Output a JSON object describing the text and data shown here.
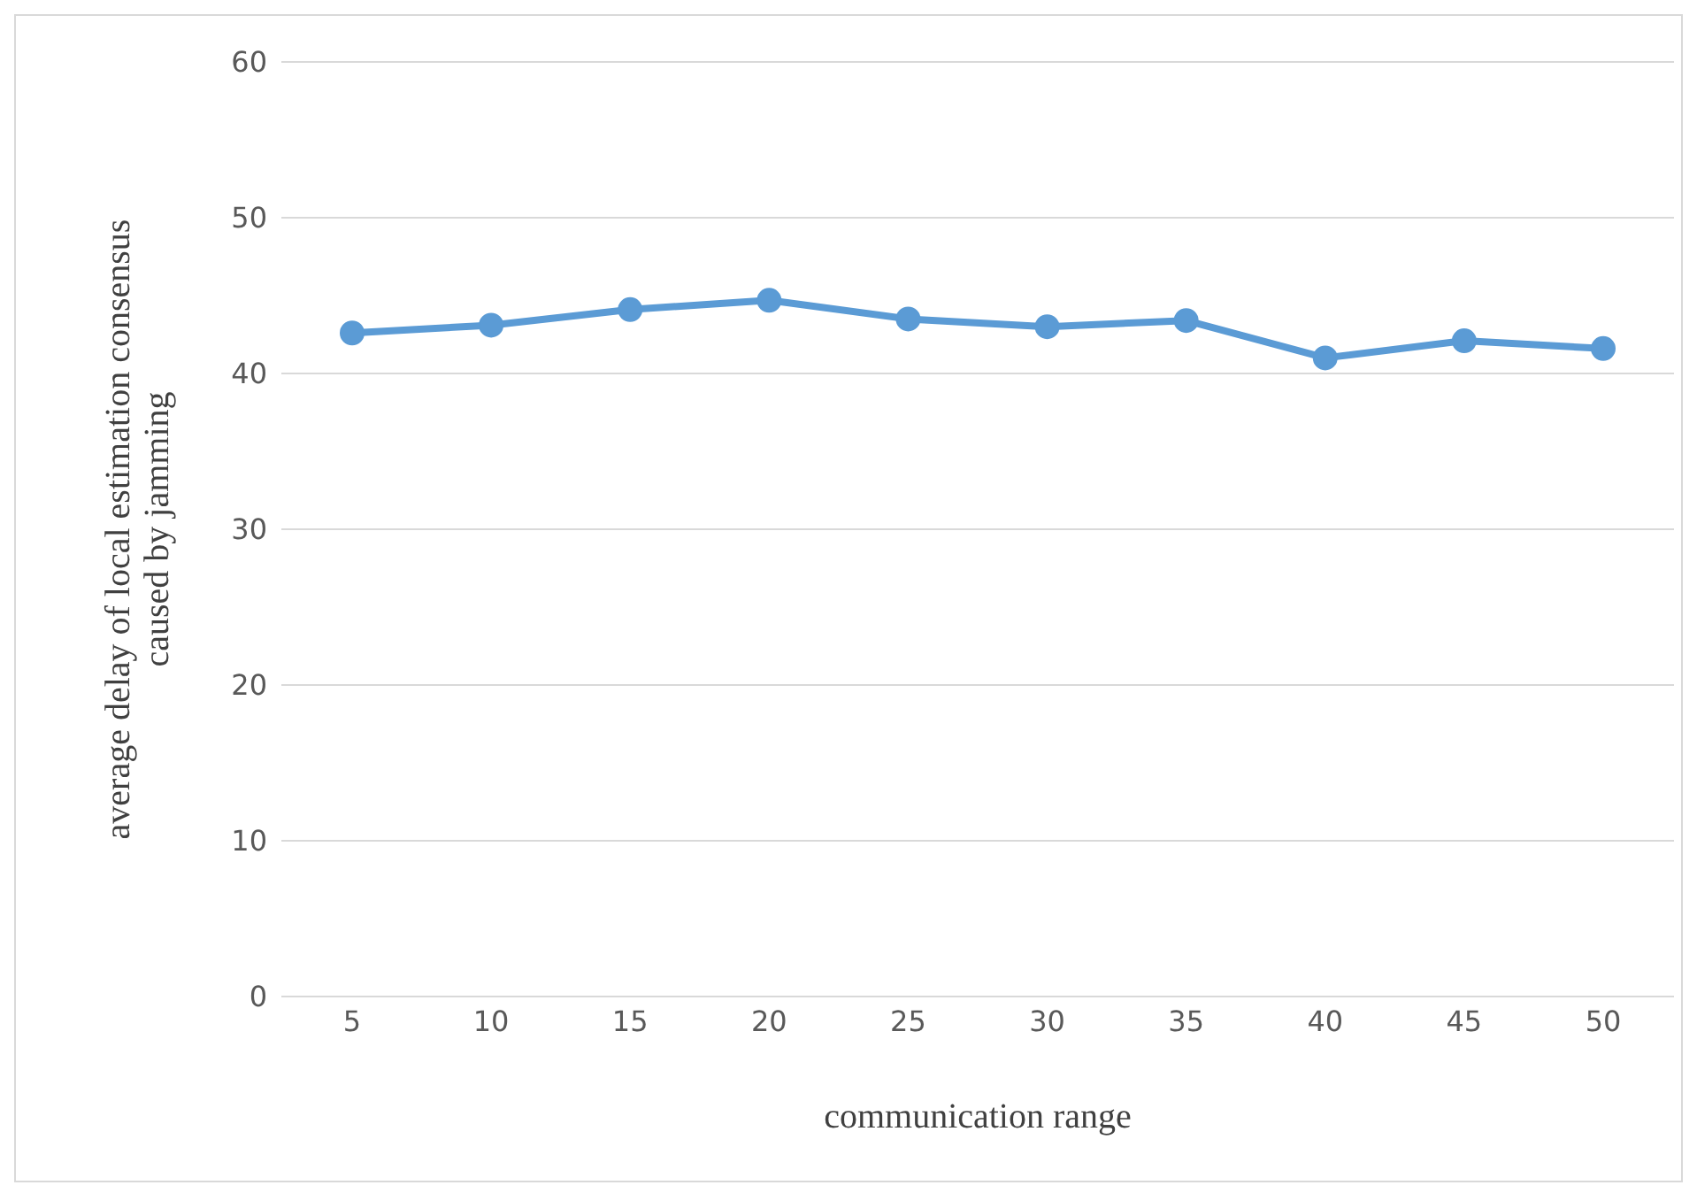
{
  "chart_data": {
    "type": "line",
    "xlabel": "communication range",
    "ylabel": "average delay of local estimation consensus\ncaused by jamming",
    "categories": [
      "5",
      "10",
      "15",
      "20",
      "25",
      "30",
      "35",
      "40",
      "45",
      "50"
    ],
    "series": [
      {
        "color": "#5b9bd5",
        "values": [
          42.6,
          43.1,
          44.1,
          44.7,
          43.5,
          43.0,
          43.4,
          41.0,
          42.1,
          41.6
        ]
      }
    ],
    "ylim": [
      0,
      60
    ],
    "yticks": [
      0,
      10,
      20,
      30,
      40,
      50,
      60
    ],
    "grid": "y",
    "legend": false,
    "marker": "circle",
    "line_style": "solid"
  }
}
